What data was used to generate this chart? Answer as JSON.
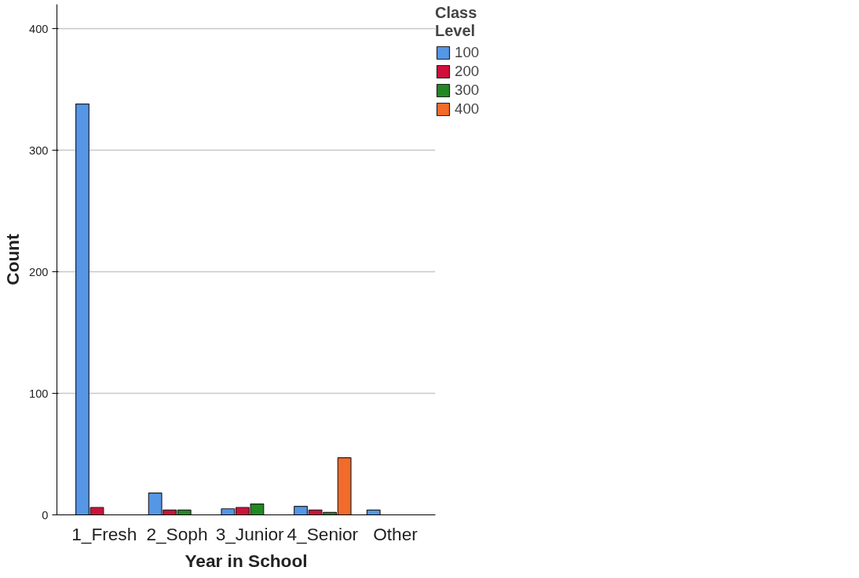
{
  "chart_data": {
    "type": "bar",
    "xlabel": "Year in School",
    "ylabel": "Count",
    "legend_title": "Class Level",
    "categories": [
      "1_Fresh",
      "2_Soph",
      "3_Junior",
      "4_Senior",
      "Other"
    ],
    "series": [
      {
        "name": "100",
        "color": "#5596e6",
        "values": [
          338,
          18,
          5,
          7,
          4
        ]
      },
      {
        "name": "200",
        "color": "#d0103a",
        "values": [
          6,
          4,
          6,
          4,
          null
        ]
      },
      {
        "name": "300",
        "color": "#228822",
        "values": [
          null,
          4,
          9,
          2,
          null
        ]
      },
      {
        "name": "400",
        "color": "#f26b2a",
        "values": [
          null,
          null,
          null,
          47,
          null
        ]
      }
    ],
    "ylim": [
      0,
      420
    ],
    "yticks": [
      0,
      100,
      200,
      300,
      400
    ],
    "grid": "y",
    "legend": "top right"
  }
}
